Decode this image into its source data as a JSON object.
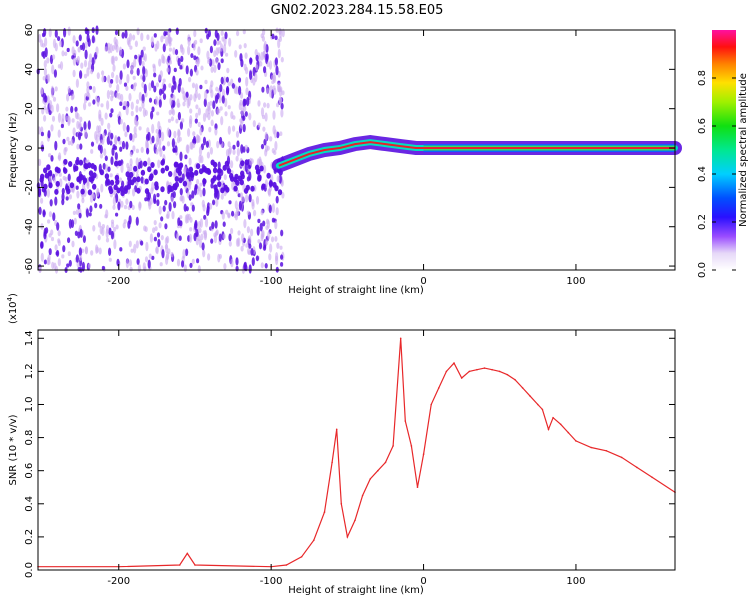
{
  "title": "GN02.2023.284.15.58.E05",
  "colors": {
    "snr_line": "#e8282a",
    "scatter_light": "#c9a8f0",
    "scatter_dark": "#5a10e0",
    "signal_band_core": "#e8202a",
    "signal_band_edge": "#1060ff"
  },
  "chart_data": [
    {
      "type": "heatmap",
      "title": "",
      "xlabel": "Height of straight line (km)",
      "ylabel": "Frequency (Hz)",
      "xlim": [
        -253,
        165
      ],
      "ylim": [
        -62,
        60
      ],
      "x_ticks": [
        -200,
        -100,
        0,
        100
      ],
      "x_tick_labels": [
        "-200",
        "-100",
        "0",
        "100"
      ],
      "y_ticks": [
        -60,
        -40,
        -20,
        0,
        20,
        40,
        60
      ],
      "y_tick_labels": [
        "-60",
        "-40",
        "-20",
        "0",
        "20",
        "40",
        "60"
      ],
      "noise_region_x": [
        -253,
        -92
      ],
      "signal_track": {
        "x": [
          -95,
          -85,
          -75,
          -65,
          -55,
          -45,
          -35,
          -25,
          -15,
          -5,
          0,
          165
        ],
        "frequency": [
          -9,
          -6,
          -3,
          -1,
          0,
          2,
          3,
          2,
          1,
          0,
          0,
          0
        ]
      },
      "colorbar": {
        "label": "Normalized spectral amplitude",
        "range": [
          0,
          1
        ],
        "ticks": [
          0.0,
          0.2,
          0.4,
          0.6,
          0.8
        ],
        "tick_labels": [
          "0.0",
          "0.2",
          "0.4",
          "0.6",
          "0.8"
        ]
      }
    },
    {
      "type": "line",
      "title": "",
      "xlabel": "Height of straight line (km)",
      "ylabel": "SNR (10 * v/v)",
      "y_multiplier": "(x10",
      "y_multiplier_exp": "4",
      "y_multiplier_close": ")",
      "xlim": [
        -253,
        165
      ],
      "ylim": [
        0,
        1.45
      ],
      "x_ticks": [
        -200,
        -100,
        0,
        100
      ],
      "x_tick_labels": [
        "-200",
        "-100",
        "0",
        "100"
      ],
      "y_ticks": [
        0.0,
        0.2,
        0.4,
        0.6,
        0.8,
        1.0,
        1.2,
        1.4
      ],
      "y_tick_labels": [
        "0.0",
        "0.2",
        "0.4",
        "0.6",
        "0.8",
        "1.0",
        "1.2",
        "1.4"
      ],
      "series": [
        {
          "x": [
            -253,
            -200,
            -160,
            -155,
            -150,
            -100,
            -90,
            -80,
            -72,
            -65,
            -60,
            -57,
            -54,
            -50,
            -45,
            -40,
            -35,
            -30,
            -25,
            -20,
            -15,
            -12,
            -8,
            -4,
            0,
            5,
            10,
            15,
            20,
            25,
            30,
            35,
            40,
            45,
            50,
            55,
            60,
            65,
            70,
            75,
            78,
            82,
            85,
            90,
            95,
            100,
            110,
            120,
            130,
            140,
            150,
            165
          ],
          "y": [
            0.02,
            0.02,
            0.03,
            0.1,
            0.03,
            0.02,
            0.03,
            0.08,
            0.18,
            0.35,
            0.65,
            0.85,
            0.4,
            0.2,
            0.3,
            0.45,
            0.55,
            0.6,
            0.65,
            0.75,
            1.4,
            0.9,
            0.75,
            0.5,
            0.7,
            1.0,
            1.1,
            1.2,
            1.25,
            1.16,
            1.2,
            1.21,
            1.22,
            1.21,
            1.2,
            1.18,
            1.15,
            1.1,
            1.05,
            1.0,
            0.97,
            0.85,
            0.92,
            0.88,
            0.83,
            0.78,
            0.74,
            0.72,
            0.68,
            0.62,
            0.56,
            0.47
          ]
        }
      ]
    }
  ]
}
